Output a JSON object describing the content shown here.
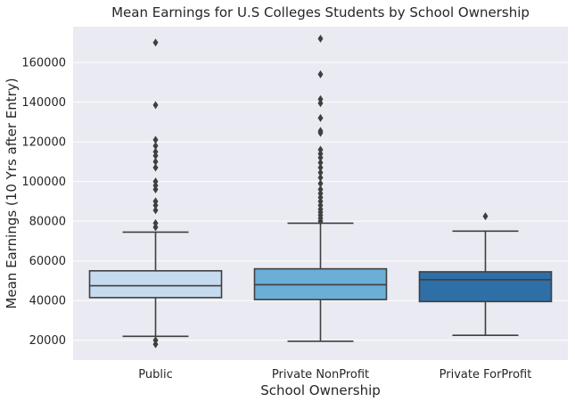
{
  "chart_data": {
    "type": "box",
    "title": "Mean Earnings for U.S Colleges Students by School Ownership",
    "xlabel": "School Ownership",
    "ylabel": "Mean Earnings (10 Yrs after Entry)",
    "ylim": [
      10000,
      178000
    ],
    "yticks": [
      20000,
      40000,
      60000,
      80000,
      100000,
      120000,
      140000,
      160000
    ],
    "ytick_labels": [
      "20000",
      "40000",
      "60000",
      "80000",
      "100000",
      "120000",
      "140000",
      "160000"
    ],
    "grid": true,
    "colors": {
      "background": "#eaeaf2",
      "grid": "#ffffff",
      "box_edge": "#3f3f3f",
      "outlier": "#3f3f3f"
    },
    "categories": [
      "Public",
      "Private NonProfit",
      "Private ForProfit"
    ],
    "boxes": [
      {
        "name": "Public",
        "color": "#c6dbef",
        "whisker_low": 22000,
        "q1": 41500,
        "median": 47500,
        "q3": 55000,
        "whisker_high": 74500,
        "outliers": [
          18000,
          20000,
          77000,
          79000,
          85500,
          88000,
          90000,
          96000,
          98000,
          100000,
          107000,
          110000,
          113000,
          115000,
          118000,
          121000,
          138500,
          170000
        ]
      },
      {
        "name": "Private NonProfit",
        "color": "#6baed6",
        "whisker_low": 19500,
        "q1": 40500,
        "median": 48000,
        "q3": 56000,
        "whisker_high": 79000,
        "outliers": [
          80000,
          81500,
          83000,
          84500,
          86000,
          88000,
          90000,
          92000,
          94000,
          96000,
          99000,
          102000,
          104500,
          107000,
          109500,
          112000,
          114000,
          116000,
          124500,
          125500,
          132000,
          139500,
          141500,
          154000,
          172000
        ]
      },
      {
        "name": "Private ForProfit",
        "color": "#2f6fa8",
        "whisker_low": 22500,
        "q1": 39500,
        "median": 50500,
        "q3": 54500,
        "whisker_high": 75000,
        "outliers": [
          82500
        ]
      }
    ]
  }
}
